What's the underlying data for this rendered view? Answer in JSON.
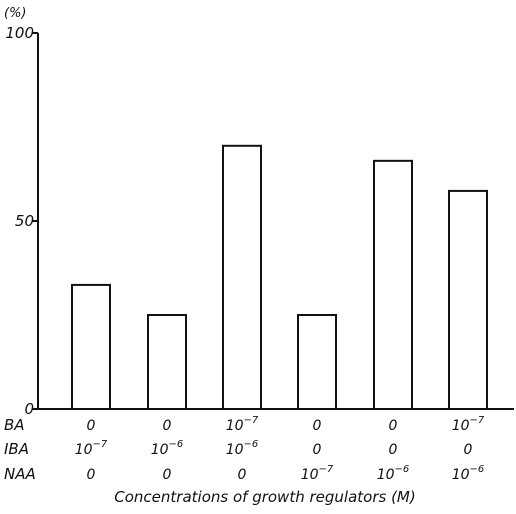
{
  "chart_data": {
    "type": "bar",
    "title": "",
    "ylabel": "(%)",
    "xlabel": "Concentrations of growth regulators (M)",
    "ylim": [
      0,
      100
    ],
    "yticks": [
      0,
      50,
      100
    ],
    "values": [
      33,
      25,
      70,
      25,
      66,
      58
    ],
    "treatment_rows": [
      {
        "name": "BA",
        "cells": [
          {
            "base": "0"
          },
          {
            "base": "0"
          },
          {
            "base": "10",
            "exp": "−7"
          },
          {
            "base": "0"
          },
          {
            "base": "0"
          },
          {
            "base": "10",
            "exp": "−7"
          }
        ]
      },
      {
        "name": "IBA",
        "cells": [
          {
            "base": "10",
            "exp": "−7"
          },
          {
            "base": "10",
            "exp": "−6"
          },
          {
            "base": "10",
            "exp": "−6"
          },
          {
            "base": "0"
          },
          {
            "base": "0"
          },
          {
            "base": "0"
          }
        ]
      },
      {
        "name": "NAA",
        "cells": [
          {
            "base": "0"
          },
          {
            "base": "0"
          },
          {
            "base": "0"
          },
          {
            "base": "10",
            "exp": "−7"
          },
          {
            "base": "10",
            "exp": "−6"
          },
          {
            "base": "10",
            "exp": "−6"
          }
        ]
      }
    ],
    "bar_fill": "#ffffff",
    "line_color": "#111111",
    "grid": false,
    "legend": "none"
  }
}
